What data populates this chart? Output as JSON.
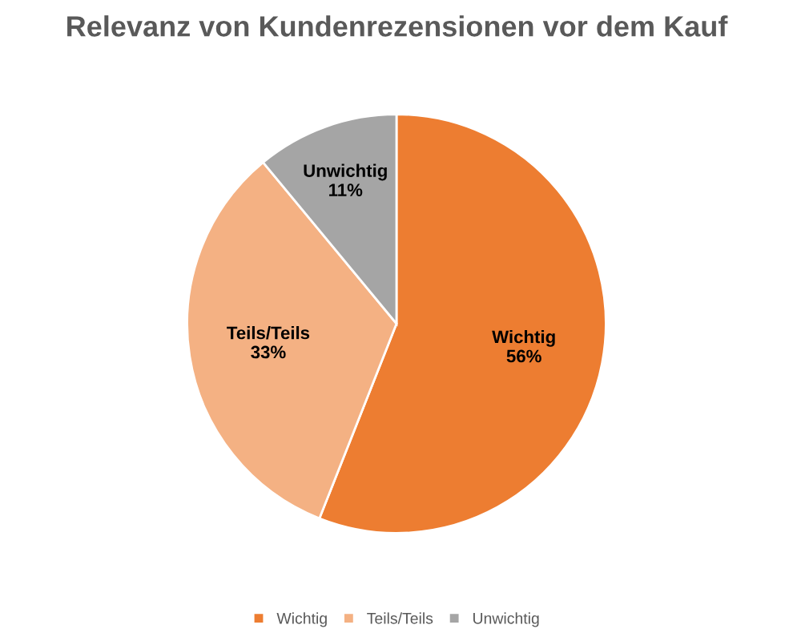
{
  "chart_data": {
    "type": "pie",
    "title": "Relevanz von Kundenrezensionen vor dem Kauf",
    "categories": [
      "Wichtig",
      "Teils/Teils",
      "Unwichtig"
    ],
    "values": [
      56,
      33,
      11
    ],
    "value_labels": [
      "56%",
      "33%",
      "11%"
    ],
    "colors": [
      "#ed7d31",
      "#f4b183",
      "#a5a5a5"
    ],
    "legend": "bottom"
  }
}
